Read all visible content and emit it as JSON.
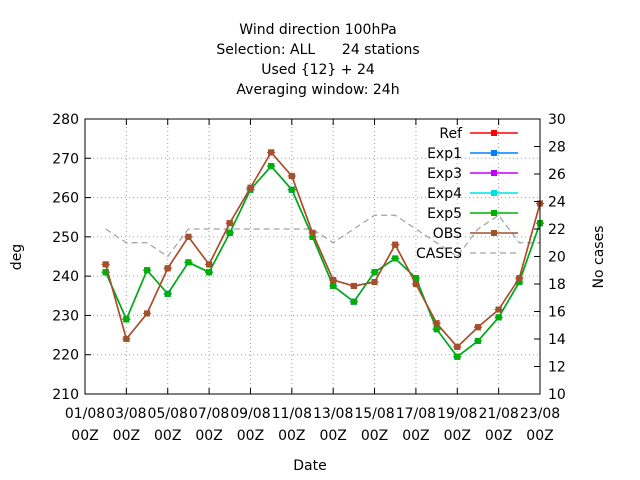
{
  "title_lines": [
    "Wind direction 100hPa",
    "Selection: ALL      24 stations",
    "Used {12} + 24",
    "Averaging window: 24h"
  ],
  "chart_data": {
    "type": "line",
    "xlabel": "Date",
    "ylabel": "deg",
    "y2label": "No cases",
    "ylim": [
      210,
      280
    ],
    "y2lim": [
      10,
      30
    ],
    "yticks": [
      "210",
      "220",
      "230",
      "240",
      "250",
      "260",
      "270",
      "280"
    ],
    "y2ticks": [
      "10",
      "12",
      "14",
      "16",
      "18",
      "20",
      "22",
      "24",
      "26",
      "28",
      "30"
    ],
    "x_tick_dates": [
      "01/08",
      "03/08",
      "05/08",
      "07/08",
      "09/08",
      "11/08",
      "13/08",
      "15/08",
      "17/08",
      "19/08",
      "21/08",
      "23/08"
    ],
    "x_tick_time": "00Z",
    "xlim_days": [
      1,
      23
    ],
    "grid": true,
    "legend_position": "top-right",
    "x_days": [
      2,
      3,
      4,
      5,
      6,
      7,
      8,
      9,
      10,
      11,
      12,
      13,
      14,
      15,
      16,
      17,
      18,
      19,
      20,
      21,
      22,
      23
    ],
    "series": [
      {
        "name": "Ref",
        "color": "#ff0000",
        "values": [
          243,
          224,
          230.5,
          242,
          250,
          243,
          253.5,
          262.5,
          271.5,
          265.5,
          251,
          239,
          237.5,
          238.5,
          248,
          238,
          228,
          222,
          227,
          231.5,
          239.5,
          258.5
        ]
      },
      {
        "name": "Exp1",
        "color": "#0080ff",
        "values": [
          241,
          229,
          241.5,
          235.5,
          243.5,
          241,
          251,
          262,
          268,
          262,
          250,
          237.5,
          233.5,
          241,
          244.5,
          239.5,
          226.5,
          219.5,
          223.5,
          229.5,
          238.5,
          253.5
        ]
      },
      {
        "name": "Exp3",
        "color": "#bf00ff",
        "values": [
          241,
          229,
          241.5,
          235.5,
          243.5,
          241,
          251,
          262,
          268,
          262,
          250,
          237.5,
          233.5,
          241,
          244.5,
          239.5,
          226.5,
          219.5,
          223.5,
          229.5,
          238.5,
          253.5
        ]
      },
      {
        "name": "Exp4",
        "color": "#00e0e0",
        "values": [
          241,
          229,
          241.5,
          235.5,
          243.5,
          241,
          251,
          262,
          268,
          262,
          250,
          237.5,
          233.5,
          241,
          244.5,
          239.5,
          226.5,
          219.5,
          223.5,
          229.5,
          238.5,
          253.5
        ]
      },
      {
        "name": "Exp5",
        "color": "#00b000",
        "values": [
          241,
          229,
          241.5,
          235.5,
          243.5,
          241,
          251,
          262,
          268,
          262,
          250,
          237.5,
          233.5,
          241,
          244.5,
          239.5,
          226.5,
          219.5,
          223.5,
          229.5,
          238.5,
          253.5
        ]
      },
      {
        "name": "OBS",
        "color": "#a0522d",
        "values": [
          243,
          224,
          230.5,
          242,
          250,
          243,
          253.5,
          262.5,
          271.5,
          265.5,
          251,
          239,
          237.5,
          238.5,
          248,
          238,
          228,
          222,
          227,
          231.5,
          239.5,
          258.5
        ]
      }
    ],
    "cases": {
      "name": "CASES",
      "color": "#a0a0a0",
      "axis": "right",
      "x_days": [
        2,
        3,
        4,
        5,
        6,
        7,
        8,
        9,
        10,
        11,
        12,
        13,
        14,
        15,
        16,
        17,
        18,
        19,
        20,
        21,
        22,
        23
      ],
      "values": [
        22,
        21,
        21,
        20,
        22,
        22,
        22,
        22,
        22,
        22,
        22,
        21,
        22,
        23,
        23,
        22,
        21,
        20,
        22,
        23,
        21,
        21
      ]
    }
  }
}
